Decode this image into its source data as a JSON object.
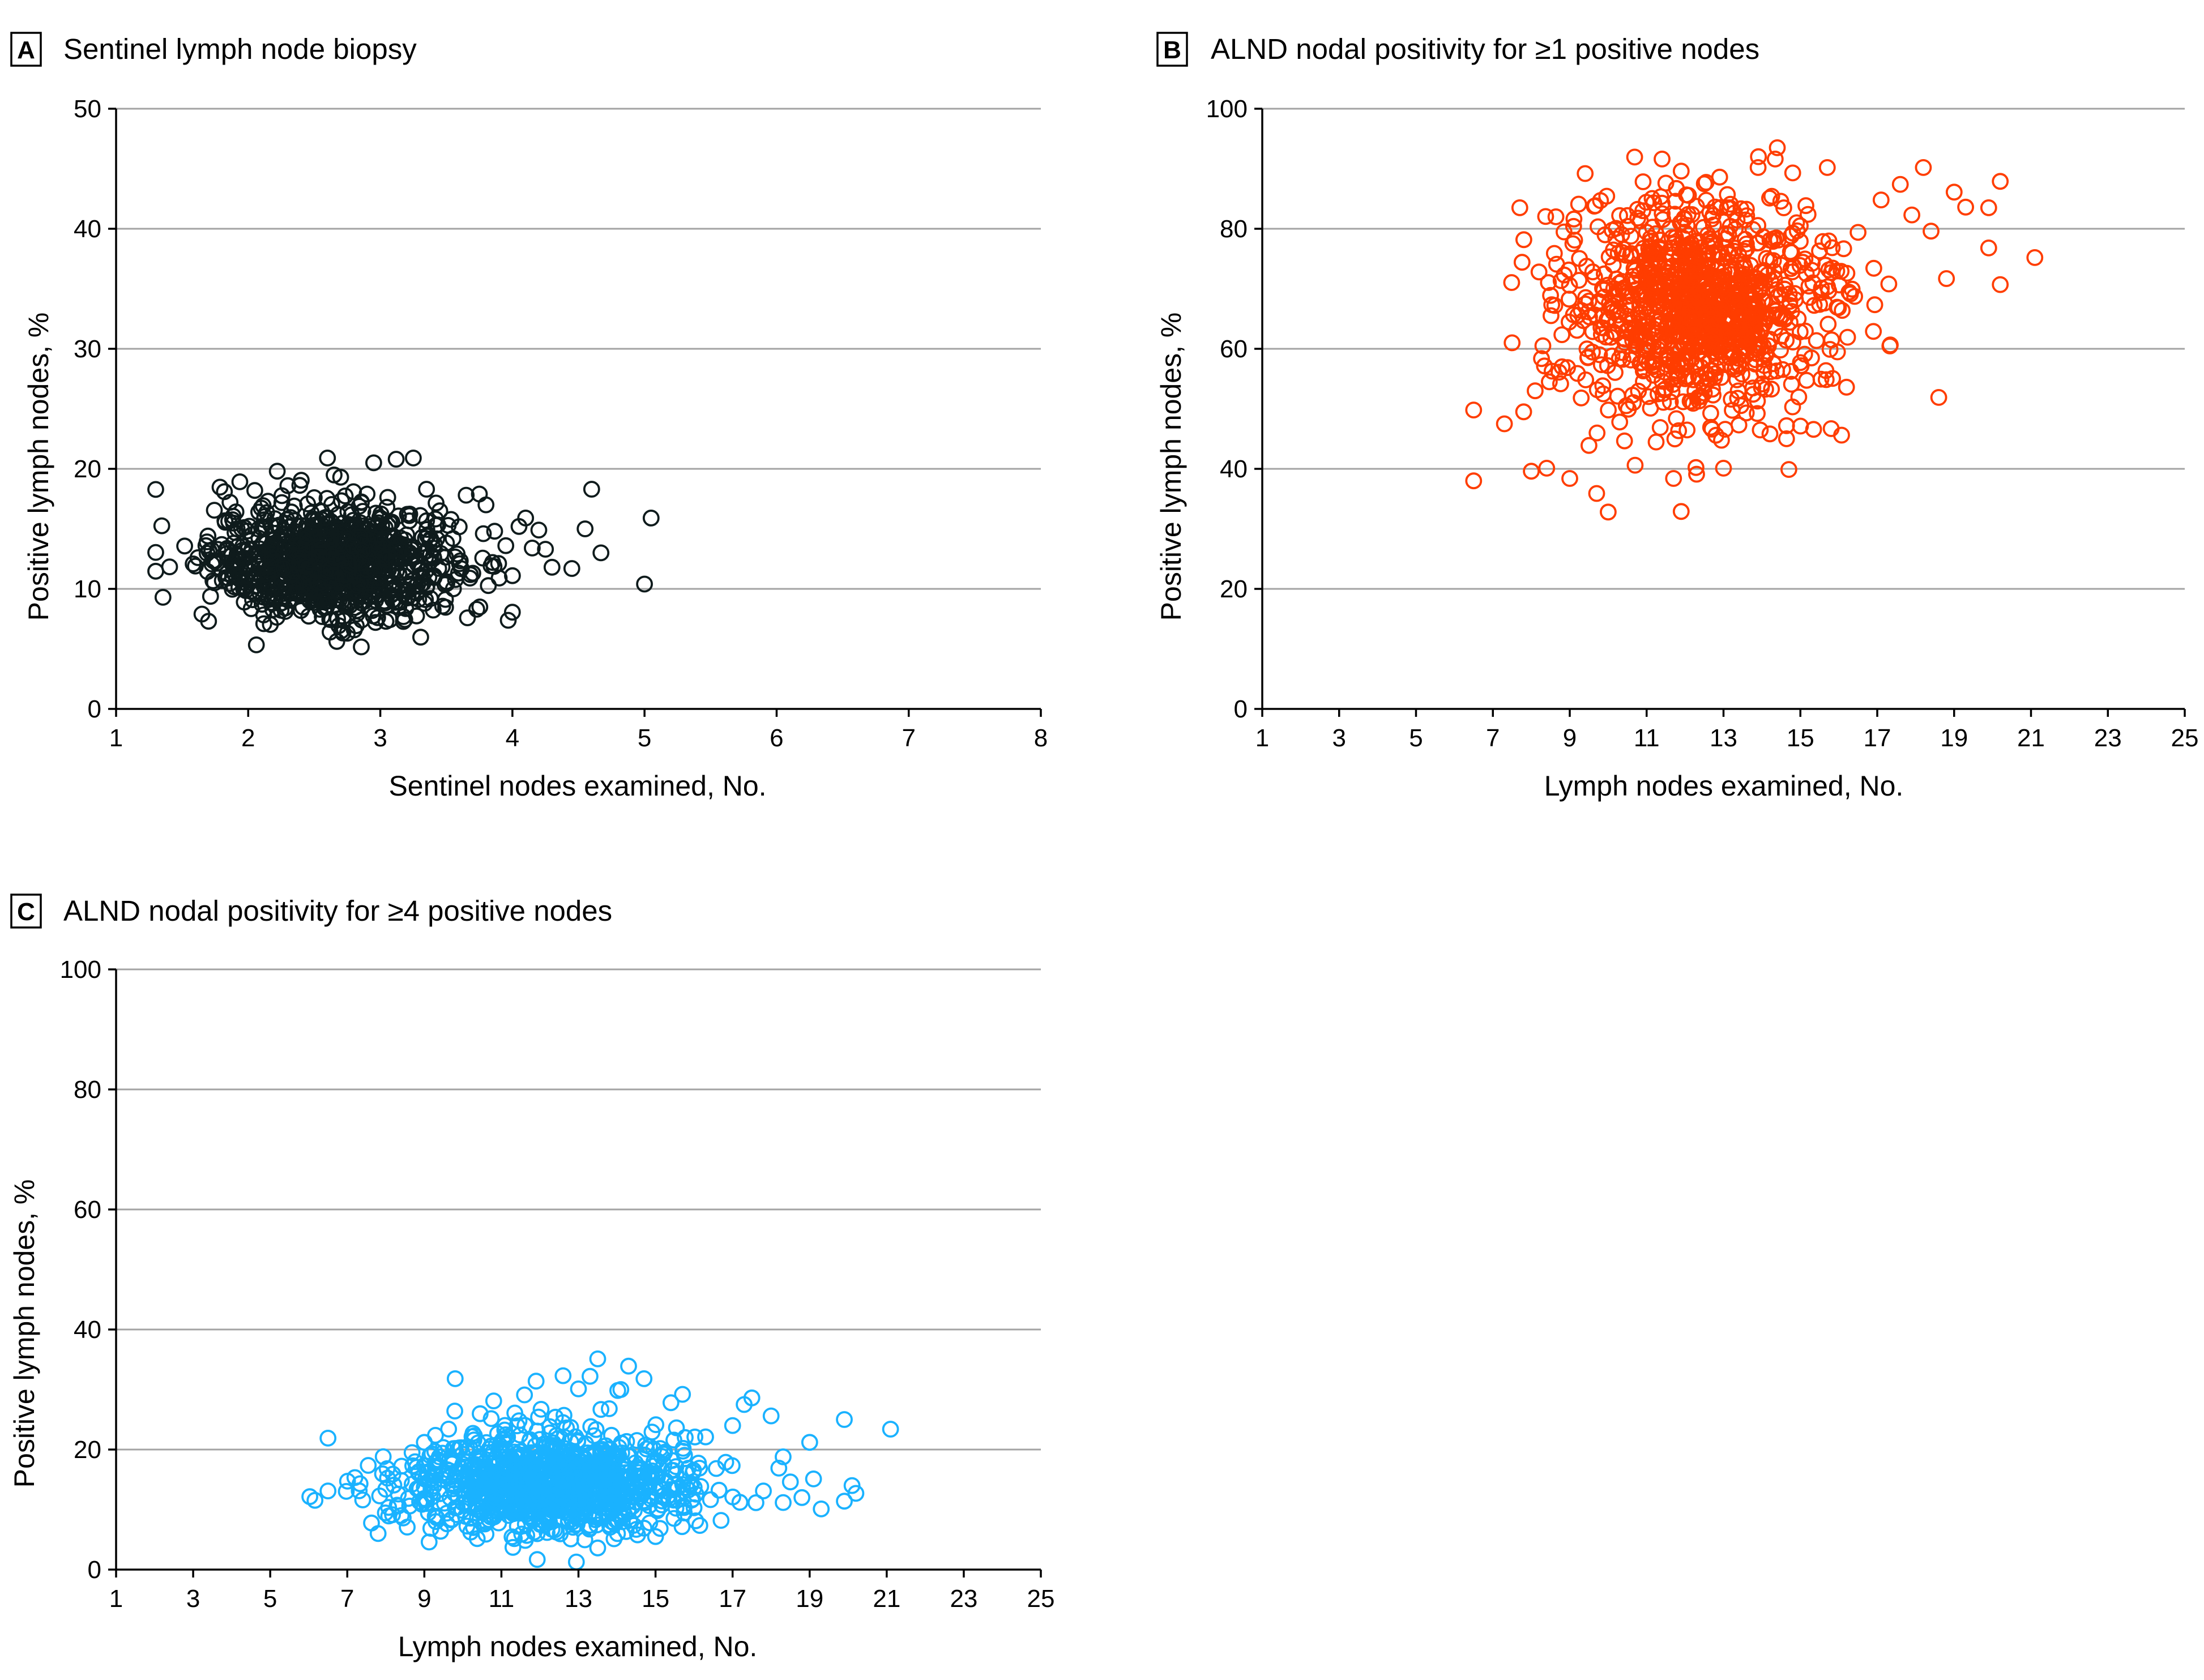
{
  "chart_data": [
    {
      "id": "A",
      "type": "scatter",
      "panel_letter": "A",
      "title": "Sentinel lymph node biopsy",
      "xlabel": "Sentinel nodes examined, No.",
      "ylabel": "Positive lymph nodes, %",
      "xlim": [
        1,
        8
      ],
      "ylim": [
        0,
        50
      ],
      "xticks": [
        1,
        2,
        3,
        4,
        5,
        6,
        7,
        8
      ],
      "yticks": [
        0,
        10,
        20,
        30,
        40,
        50
      ],
      "grid": true,
      "color": "#0f1b1c",
      "marker": "open-circle",
      "points": [
        [
          1.6,
          11.9
        ],
        [
          1.62,
          12.6
        ],
        [
          1.65,
          7.9
        ],
        [
          1.68,
          13.6
        ],
        [
          1.7,
          7.3
        ],
        [
          1.75,
          12.3
        ],
        [
          1.8,
          13.7
        ],
        [
          1.82,
          18.1
        ],
        [
          1.85,
          10.9
        ],
        [
          1.9,
          11.2
        ],
        [
          1.95,
          15.0
        ],
        [
          1.97,
          8.9
        ],
        [
          2.0,
          13.3
        ],
        [
          2.02,
          9.8
        ],
        [
          2.05,
          18.2
        ],
        [
          2.08,
          16.4
        ],
        [
          2.1,
          11.0
        ],
        [
          2.12,
          12.4
        ],
        [
          2.15,
          17.3
        ],
        [
          2.2,
          9.6
        ],
        [
          2.22,
          19.8
        ],
        [
          2.25,
          14.1
        ],
        [
          2.28,
          8.4
        ],
        [
          2.3,
          18.6
        ],
        [
          2.32,
          12.0
        ],
        [
          2.35,
          15.7
        ],
        [
          2.38,
          10.5
        ],
        [
          2.4,
          8.2
        ],
        [
          2.42,
          13.8
        ],
        [
          2.45,
          11.2
        ],
        [
          2.5,
          17.6
        ],
        [
          2.52,
          9.1
        ],
        [
          2.55,
          14.9
        ],
        [
          2.58,
          12.7
        ],
        [
          2.6,
          20.9
        ],
        [
          2.62,
          6.4
        ],
        [
          2.65,
          11.4
        ],
        [
          2.68,
          16.2
        ],
        [
          2.7,
          19.3
        ],
        [
          2.72,
          7.7
        ],
        [
          2.75,
          6.3
        ],
        [
          2.78,
          13.2
        ],
        [
          2.8,
          10.8
        ],
        [
          2.85,
          15.5
        ],
        [
          2.9,
          17.9
        ],
        [
          2.92,
          9.4
        ],
        [
          2.95,
          20.5
        ],
        [
          2.98,
          7.6
        ],
        [
          3.0,
          12.8
        ],
        [
          3.05,
          16.8
        ],
        [
          3.1,
          10.1
        ],
        [
          3.12,
          20.8
        ],
        [
          3.15,
          8.9
        ],
        [
          3.2,
          14.5
        ],
        [
          3.25,
          20.9
        ],
        [
          3.3,
          11.7
        ],
        [
          3.35,
          18.3
        ],
        [
          3.38,
          9.2
        ],
        [
          3.4,
          13.4
        ],
        [
          3.45,
          16.5
        ],
        [
          3.5,
          10.6
        ],
        [
          3.55,
          14.2
        ],
        [
          3.6,
          12.1
        ],
        [
          3.65,
          17.8
        ],
        [
          3.7,
          11.3
        ],
        [
          3.73,
          8.3
        ],
        [
          3.75,
          17.9
        ],
        [
          3.78,
          14.6
        ],
        [
          3.8,
          17.0
        ],
        [
          3.85,
          12.2
        ],
        [
          3.9,
          10.9
        ],
        [
          3.95,
          13.6
        ],
        [
          4.0,
          11.1
        ],
        [
          4.05,
          15.2
        ],
        [
          4.1,
          15.9
        ],
        [
          4.15,
          13.4
        ],
        [
          4.2,
          14.9
        ],
        [
          4.25,
          13.3
        ],
        [
          4.3,
          11.8
        ],
        [
          4.45,
          11.7
        ],
        [
          4.55,
          15.0
        ],
        [
          4.6,
          18.3
        ],
        [
          4.67,
          13.0
        ],
        [
          5.0,
          10.4
        ],
        [
          5.05,
          15.9
        ],
        [
          2.3,
          11.5
        ],
        [
          2.4,
          12.5
        ],
        [
          2.5,
          11.8
        ],
        [
          2.6,
          12.4
        ],
        [
          2.7,
          11.9
        ],
        [
          2.8,
          12.6
        ],
        [
          2.9,
          11.7
        ],
        [
          3.0,
          12.2
        ],
        [
          2.45,
          13.5
        ],
        [
          2.55,
          10.5
        ],
        [
          2.65,
          13.7
        ],
        [
          2.75,
          10.9
        ],
        [
          2.85,
          13.1
        ],
        [
          2.35,
          10.2
        ],
        [
          2.95,
          11.0
        ],
        [
          3.1,
          13.0
        ],
        [
          2.2,
          12.9
        ],
        [
          2.15,
          10.6
        ],
        [
          3.2,
          11.4
        ]
      ],
      "dense_cloud": {
        "center": [
          2.65,
          12.2
        ],
        "spread": [
          0.45,
          2.3
        ],
        "count": 900
      }
    },
    {
      "id": "B",
      "type": "scatter",
      "panel_letter": "B",
      "title": "ALND nodal positivity for ≥1 positive nodes",
      "xlabel": "Lymph nodes examined, No.",
      "ylabel": "Positive lymph nodes, %",
      "xlim": [
        1,
        25
      ],
      "ylim": [
        0,
        100
      ],
      "xticks": [
        1,
        3,
        5,
        7,
        9,
        11,
        13,
        15,
        17,
        19,
        21,
        23,
        25
      ],
      "yticks": [
        0,
        20,
        40,
        60,
        80,
        100
      ],
      "grid": true,
      "color": "#ff3d00",
      "marker": "open-circle",
      "points": [
        [
          6.5,
          49.8
        ],
        [
          6.5,
          38.0
        ],
        [
          7.3,
          47.5
        ],
        [
          7.5,
          61.0
        ],
        [
          7.7,
          83.5
        ],
        [
          7.8,
          49.5
        ],
        [
          8.0,
          39.6
        ],
        [
          8.1,
          53.0
        ],
        [
          8.2,
          72.8
        ],
        [
          8.3,
          60.5
        ],
        [
          8.4,
          40.1
        ],
        [
          8.5,
          68.9
        ],
        [
          8.6,
          75.9
        ],
        [
          8.8,
          57.0
        ],
        [
          9.0,
          38.4
        ],
        [
          9.1,
          80.4
        ],
        [
          9.2,
          55.9
        ],
        [
          9.3,
          66.4
        ],
        [
          9.4,
          89.2
        ],
        [
          9.5,
          43.9
        ],
        [
          9.7,
          35.9
        ],
        [
          9.8,
          84.7
        ],
        [
          10.0,
          32.8
        ],
        [
          10.1,
          58.8
        ],
        [
          10.2,
          78.3
        ],
        [
          10.3,
          47.8
        ],
        [
          10.4,
          76.6
        ],
        [
          10.5,
          82.2
        ],
        [
          10.7,
          40.6
        ],
        [
          10.9,
          83.0
        ],
        [
          11.1,
          50.1
        ],
        [
          11.3,
          68.8
        ],
        [
          11.5,
          87.6
        ],
        [
          11.7,
          38.4
        ],
        [
          11.9,
          89.6
        ],
        [
          11.9,
          32.9
        ],
        [
          12.1,
          71.8
        ],
        [
          12.3,
          39.1
        ],
        [
          12.5,
          87.5
        ],
        [
          12.7,
          46.6
        ],
        [
          12.9,
          88.6
        ],
        [
          13.0,
          40.1
        ],
        [
          13.2,
          60.9
        ],
        [
          13.4,
          47.3
        ],
        [
          13.7,
          55.4
        ],
        [
          13.9,
          90.2
        ],
        [
          14.2,
          85.1
        ],
        [
          14.4,
          93.5
        ],
        [
          14.6,
          70.6
        ],
        [
          14.7,
          39.9
        ],
        [
          14.8,
          89.3
        ],
        [
          15.0,
          57.7
        ],
        [
          15.2,
          82.4
        ],
        [
          15.5,
          67.4
        ],
        [
          15.7,
          90.2
        ],
        [
          15.8,
          46.7
        ],
        [
          16.2,
          53.6
        ],
        [
          16.5,
          79.4
        ],
        [
          16.9,
          62.9
        ],
        [
          17.1,
          84.8
        ],
        [
          17.3,
          70.8
        ],
        [
          17.6,
          87.4
        ],
        [
          17.9,
          82.3
        ],
        [
          18.2,
          90.2
        ],
        [
          18.4,
          79.6
        ],
        [
          18.6,
          51.9
        ],
        [
          18.8,
          71.7
        ],
        [
          19.0,
          86.1
        ],
        [
          19.3,
          83.6
        ],
        [
          19.9,
          83.5
        ],
        [
          19.9,
          76.8
        ],
        [
          20.2,
          70.7
        ],
        [
          20.2,
          87.9
        ],
        [
          21.1,
          75.2
        ],
        [
          13.1,
          83.5
        ],
        [
          12.0,
          55.0
        ],
        [
          11.0,
          58.0
        ],
        [
          13.6,
          62.0
        ],
        [
          10.6,
          64.3
        ],
        [
          14.9,
          81.0
        ]
      ],
      "dense_cloud": {
        "center": [
          12.3,
          67.0
        ],
        "spread": [
          1.6,
          8.5
        ],
        "count": 1050
      }
    },
    {
      "id": "C",
      "type": "scatter",
      "panel_letter": "C",
      "title": "ALND nodal positivity for ≥4 positive nodes",
      "xlabel": "Lymph nodes examined, No.",
      "ylabel": "Positive lymph nodes, %",
      "xlim": [
        1,
        25
      ],
      "ylim": [
        0,
        100
      ],
      "xticks": [
        1,
        3,
        5,
        7,
        9,
        11,
        13,
        15,
        17,
        19,
        21,
        23,
        25
      ],
      "yticks": [
        0,
        20,
        40,
        60,
        80,
        100
      ],
      "grid": true,
      "color": "#1ab2ff",
      "marker": "open-circle",
      "points": [
        [
          6.5,
          21.9
        ],
        [
          6.5,
          13.1
        ],
        [
          7.4,
          11.6
        ],
        [
          7.8,
          6.0
        ],
        [
          8.0,
          13.4
        ],
        [
          8.4,
          9.0
        ],
        [
          8.7,
          17.3
        ],
        [
          9.0,
          21.2
        ],
        [
          9.3,
          8.0
        ],
        [
          9.8,
          31.8
        ],
        [
          10.1,
          14.1
        ],
        [
          10.3,
          22.3
        ],
        [
          10.6,
          5.9
        ],
        [
          10.8,
          28.1
        ],
        [
          11.1,
          17.5
        ],
        [
          11.3,
          3.7
        ],
        [
          11.6,
          29.1
        ],
        [
          11.9,
          31.4
        ],
        [
          12.1,
          9.0
        ],
        [
          12.4,
          25.4
        ],
        [
          12.6,
          32.3
        ],
        [
          12.8,
          5.1
        ],
        [
          13.0,
          30.1
        ],
        [
          13.3,
          32.2
        ],
        [
          13.5,
          35.1
        ],
        [
          13.5,
          3.6
        ],
        [
          13.8,
          26.8
        ],
        [
          14.1,
          30.0
        ],
        [
          14.3,
          33.9
        ],
        [
          14.5,
          6.7
        ],
        [
          14.7,
          31.8
        ],
        [
          15.0,
          5.5
        ],
        [
          15.4,
          27.8
        ],
        [
          15.7,
          29.2
        ],
        [
          16.0,
          10.3
        ],
        [
          16.3,
          22.1
        ],
        [
          16.7,
          8.2
        ],
        [
          17.0,
          24.0
        ],
        [
          17.3,
          27.5
        ],
        [
          17.5,
          28.6
        ],
        [
          17.8,
          13.1
        ],
        [
          18.0,
          25.6
        ],
        [
          18.2,
          16.9
        ],
        [
          18.5,
          14.6
        ],
        [
          18.8,
          12.0
        ],
        [
          19.0,
          21.2
        ],
        [
          19.1,
          15.1
        ],
        [
          19.3,
          10.1
        ],
        [
          19.9,
          25.0
        ],
        [
          19.9,
          11.4
        ],
        [
          20.1,
          14.0
        ],
        [
          20.2,
          12.7
        ],
        [
          21.1,
          23.4
        ],
        [
          12.0,
          12.5
        ],
        [
          13.0,
          15.0
        ],
        [
          11.0,
          13.8
        ],
        [
          14.0,
          14.2
        ],
        [
          10.0,
          11.1
        ],
        [
          15.0,
          16.0
        ]
      ],
      "dense_cloud": {
        "center": [
          12.3,
          14.2
        ],
        "spread": [
          1.8,
          4.0
        ],
        "count": 1050
      }
    }
  ]
}
